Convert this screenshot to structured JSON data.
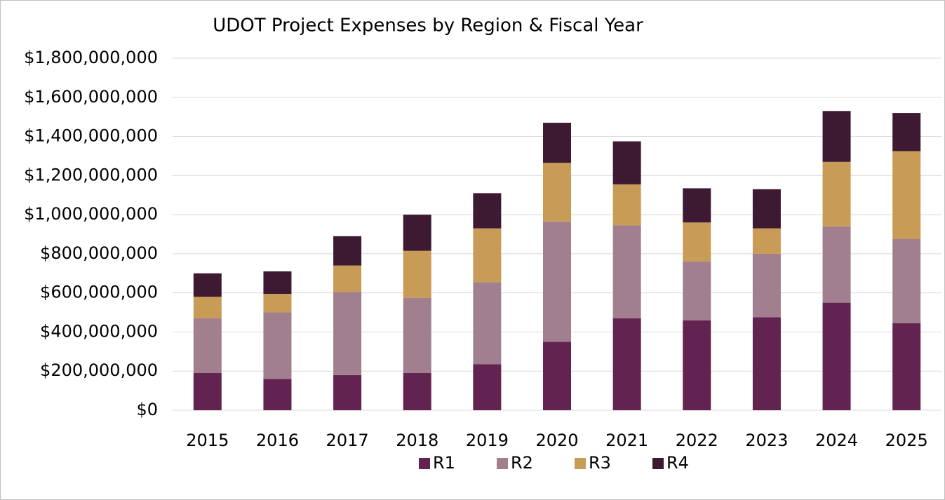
{
  "chart_data": {
    "type": "stacked_bar",
    "title": "UDOT Project Expenses by Region & Fiscal Year",
    "categories": [
      "2015",
      "2016",
      "2017",
      "2018",
      "2019",
      "2020",
      "2021",
      "2022",
      "2023",
      "2024",
      "2025"
    ],
    "series": [
      {
        "name": "R1",
        "color": "#622350",
        "values": [
          190000000,
          160000000,
          180000000,
          190000000,
          235000000,
          350000000,
          470000000,
          460000000,
          475000000,
          550000000,
          445000000
        ]
      },
      {
        "name": "R2",
        "color": "#a27f8e",
        "values": [
          280000000,
          340000000,
          425000000,
          385000000,
          420000000,
          615000000,
          475000000,
          300000000,
          325000000,
          390000000,
          430000000
        ]
      },
      {
        "name": "R3",
        "color": "#c89c57",
        "values": [
          110000000,
          95000000,
          135000000,
          240000000,
          275000000,
          300000000,
          210000000,
          200000000,
          130000000,
          330000000,
          450000000
        ]
      },
      {
        "name": "R4",
        "color": "#3d1a31",
        "values": [
          120000000,
          115000000,
          150000000,
          185000000,
          180000000,
          205000000,
          220000000,
          175000000,
          200000000,
          260000000,
          195000000
        ]
      }
    ],
    "ylim": [
      0,
      1800000000
    ],
    "yticks": [
      {
        "value": 0,
        "label": "$0"
      },
      {
        "value": 200000000,
        "label": "$200,000,000"
      },
      {
        "value": 400000000,
        "label": "$400,000,000"
      },
      {
        "value": 600000000,
        "label": "$600,000,000"
      },
      {
        "value": 800000000,
        "label": "$800,000,000"
      },
      {
        "value": 1000000000,
        "label": "$1,000,000,000"
      },
      {
        "value": 1200000000,
        "label": "$1,200,000,000"
      },
      {
        "value": 1400000000,
        "label": "$1,400,000,000"
      },
      {
        "value": 1600000000,
        "label": "$1,600,000,000"
      },
      {
        "value": 1800000000,
        "label": "$1,800,000,000"
      }
    ],
    "grid": true,
    "legend": "bottom"
  }
}
